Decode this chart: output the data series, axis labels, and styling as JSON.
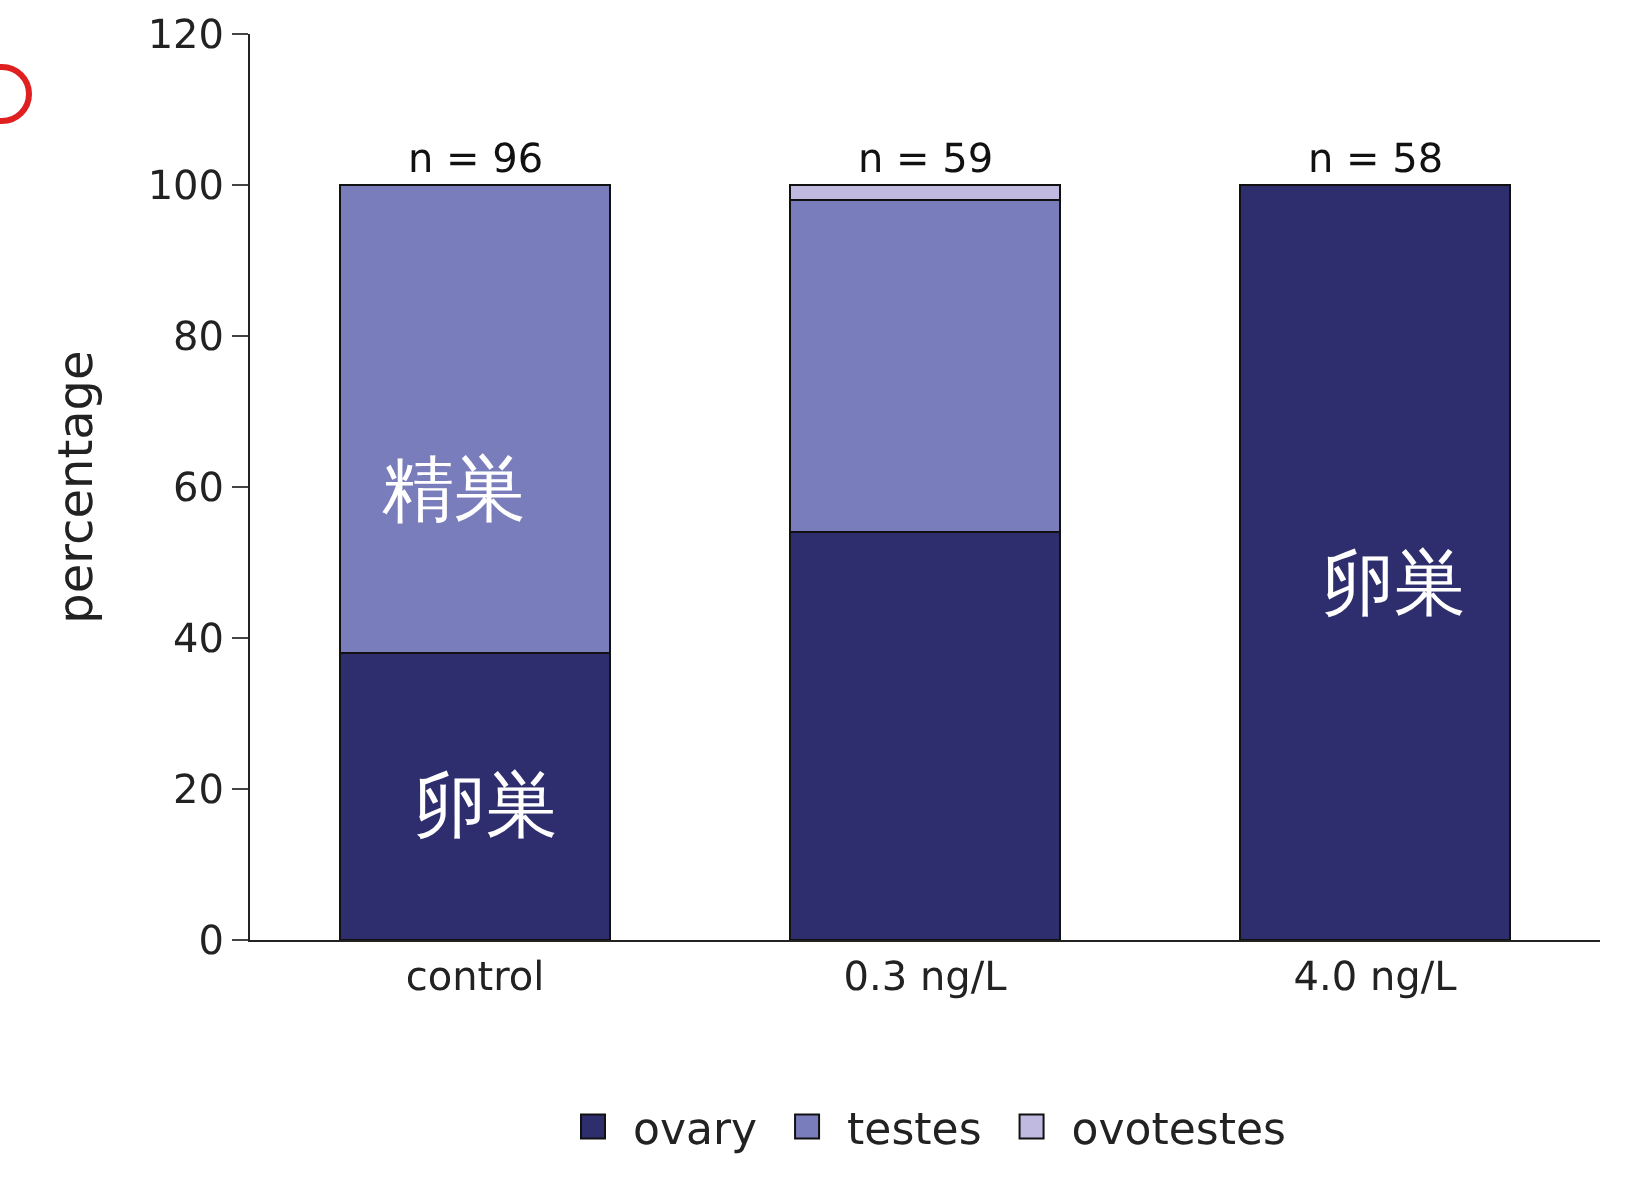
{
  "chart_data": {
    "type": "bar",
    "stacked": true,
    "ylabel": "percentage",
    "categories": [
      "control",
      "0.3 ng/L",
      "4.0 ng/L"
    ],
    "series": [
      {
        "name": "ovary",
        "color": "#2e2e6e",
        "values": [
          38,
          54,
          100
        ]
      },
      {
        "name": "testes",
        "color": "#7a7dbb",
        "values": [
          62,
          44,
          null
        ]
      },
      {
        "name": "ovotestes",
        "color": "#c0b9e0",
        "values": [
          null,
          2,
          null
        ]
      }
    ],
    "ylim": [
      0,
      120
    ],
    "yticks": [
      0,
      20,
      40,
      60,
      80,
      100,
      120
    ],
    "grid": false,
    "legend": "bottom",
    "annotations": [
      {
        "text": "n = 96",
        "x": "control",
        "y": 100
      },
      {
        "text": "n = 59",
        "x": "0.3 ng/L",
        "y": 100
      },
      {
        "text": "n = 58",
        "x": "4.0 ng/L",
        "y": 100
      },
      "精巣",
      "卵巣",
      "卵巣"
    ]
  }
}
